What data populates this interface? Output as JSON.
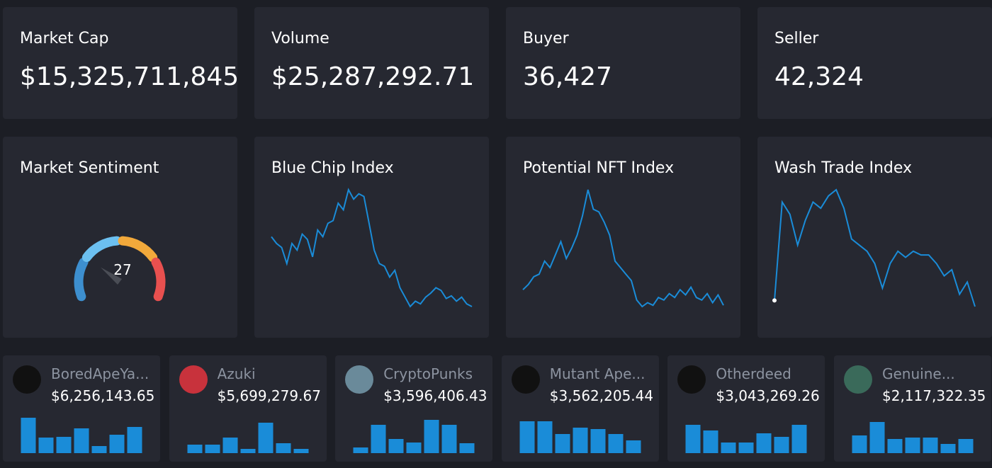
{
  "stats": [
    {
      "label": "Market Cap",
      "value": "$15,325,711,845.3"
    },
    {
      "label": "Volume",
      "value": "$25,287,292.71"
    },
    {
      "label": "Buyer",
      "value": "36,427"
    },
    {
      "label": "Seller",
      "value": "42,324"
    }
  ],
  "sentiment": {
    "title": "Market Sentiment",
    "value": 27,
    "range": [
      0,
      100
    ],
    "colors": [
      "#3d8fcf",
      "#6cc0f0",
      "#f2a93b",
      "#e8504f"
    ]
  },
  "indices": [
    {
      "title": "Blue Chip Index",
      "color": "#1a8cd8",
      "values": [
        60,
        55,
        52,
        40,
        55,
        50,
        62,
        58,
        45,
        65,
        60,
        70,
        72,
        85,
        80,
        95,
        88,
        92,
        90,
        70,
        50,
        40,
        38,
        30,
        35,
        22,
        15,
        8,
        12,
        10,
        15,
        18,
        22,
        20,
        14,
        16,
        12,
        15,
        10,
        8
      ]
    },
    {
      "title": "Potential NFT Index",
      "color": "#1a8cd8",
      "values": [
        18,
        22,
        28,
        30,
        40,
        35,
        45,
        55,
        42,
        50,
        60,
        75,
        95,
        80,
        78,
        70,
        60,
        40,
        35,
        30,
        25,
        10,
        5,
        8,
        6,
        12,
        10,
        15,
        12,
        18,
        14,
        20,
        12,
        10,
        15,
        8,
        14,
        6
      ]
    },
    {
      "title": "Wash Trade Index",
      "color": "#1a8cd8",
      "values": [
        5,
        85,
        75,
        50,
        70,
        85,
        80,
        90,
        95,
        80,
        55,
        50,
        45,
        35,
        15,
        35,
        45,
        40,
        45,
        42,
        42,
        35,
        25,
        30,
        10,
        20,
        0
      ]
    }
  ],
  "collections": [
    {
      "name": "BoredApeYa...",
      "value": "$6,256,143.65",
      "bars": [
        50,
        22,
        23,
        35,
        10,
        26,
        37
      ]
    },
    {
      "name": "Azuki",
      "value": "$5,699,279.67",
      "bars": [
        12,
        12,
        22,
        6,
        43,
        14,
        6
      ]
    },
    {
      "name": "CryptoPunks",
      "value": "$3,596,406.43",
      "bars": [
        8,
        40,
        20,
        15,
        47,
        40,
        14
      ]
    },
    {
      "name": "Mutant Ape...",
      "value": "$3,562,205.44",
      "bars": [
        45,
        45,
        27,
        36,
        34,
        27,
        18
      ]
    },
    {
      "name": "Otherdeed",
      "value": "$3,043,269.26",
      "bars": [
        40,
        32,
        15,
        15,
        28,
        23,
        40
      ]
    },
    {
      "name": "Genuine...",
      "value": "$2,117,322.35",
      "bars": [
        25,
        44,
        20,
        22,
        22,
        13,
        20
      ]
    }
  ],
  "barColor": "#1a8cd8"
}
